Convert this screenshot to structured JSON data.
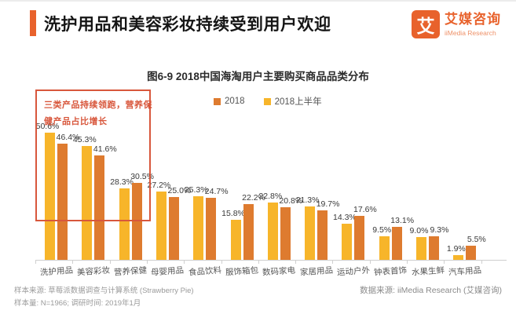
{
  "header": {
    "title": "洗护用品和美容彩妆持续受到用户欢迎",
    "accent_color": "#E8622C"
  },
  "logo": {
    "glyph": "艾",
    "name": "艾媒咨询",
    "subtitle": "iiMedia Research"
  },
  "chart": {
    "title": "图6-9 2018中国海淘用户主要购买商品品类分布",
    "legend": [
      {
        "label": "2018",
        "color": "#DE7B2F"
      },
      {
        "label": "2018上半年",
        "color": "#F7B52A"
      }
    ],
    "annotation_lines": [
      "三类产品持续领跑，营养保",
      "健产品占比增长"
    ],
    "annotation_color": "#D8573C"
  },
  "chart_data": {
    "type": "bar",
    "title": "图6-9 2018中国海淘用户主要购买商品品类分布",
    "categories": [
      "洗护用品",
      "美容彩妆",
      "营养保健",
      "母婴用品",
      "食品饮料",
      "服饰箱包",
      "数码家电",
      "家居用品",
      "运动户外",
      "钟表首饰",
      "水果生鲜",
      "汽车用品"
    ],
    "series": [
      {
        "name": "2018上半年",
        "color": "#F7B52A",
        "values": [
          50.6,
          45.3,
          28.3,
          27.2,
          25.3,
          15.8,
          22.8,
          21.3,
          14.3,
          9.5,
          9.0,
          1.9
        ]
      },
      {
        "name": "2018",
        "color": "#DE7B2F",
        "values": [
          46.4,
          41.6,
          30.5,
          25.0,
          24.7,
          22.2,
          20.8,
          19.7,
          17.6,
          13.1,
          9.3,
          5.5
        ]
      }
    ],
    "unit": "%",
    "ylim": [
      0,
      55
    ],
    "grid": false,
    "legend_position": "top",
    "value_labels": true
  },
  "footer": {
    "source_line1": "样本来源: 草莓派数据调查与计算系统 (Strawberry Pie)",
    "source_line2": "样本量: N=1966; 调研时间: 2019年1月",
    "data_source": "数据来源: iiMedia Research (艾媒咨询)"
  }
}
